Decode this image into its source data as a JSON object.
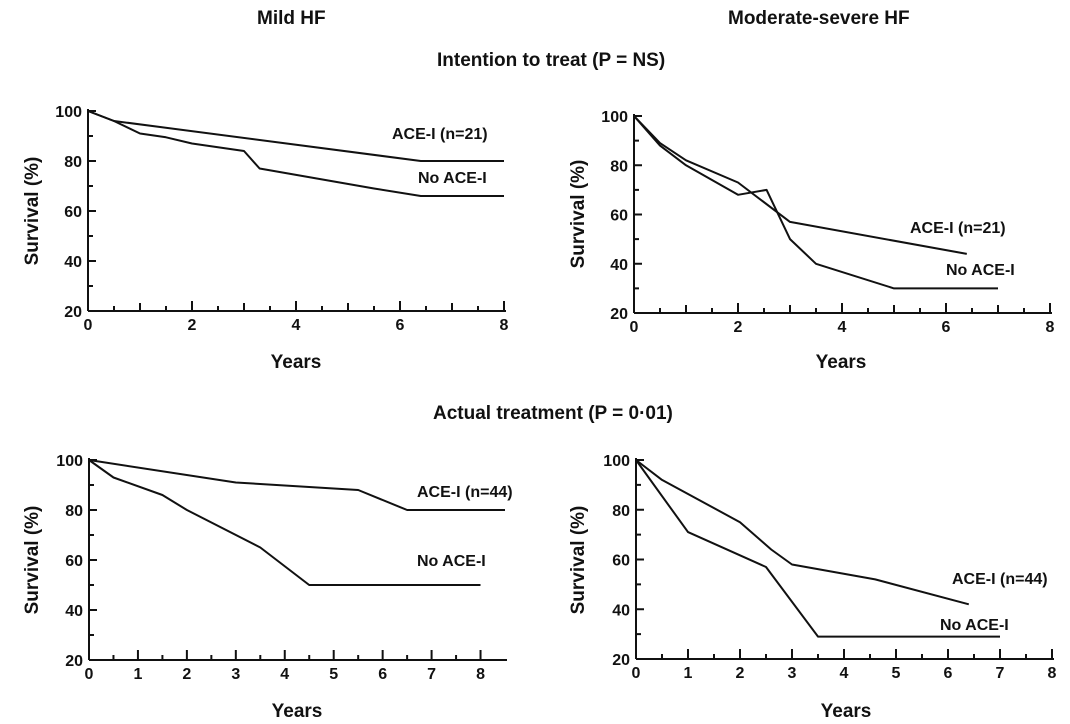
{
  "headers": {
    "left_column": "Mild HF",
    "right_column": "Moderate-severe HF",
    "section_top": "Intention to treat (P = NS)",
    "section_bottom": "Actual treatment (P = 0·01)"
  },
  "chart_data": [
    {
      "type": "line",
      "panel": "intention-mild",
      "xlabel": "Years",
      "ylabel": "Survival (%)",
      "xlim": [
        0,
        8
      ],
      "ylim": [
        20,
        100
      ],
      "xticks": [
        0,
        2,
        4,
        6,
        8
      ],
      "xminor": [
        1,
        3,
        5,
        7
      ],
      "yticks": [
        20,
        40,
        60,
        80,
        100
      ],
      "series": [
        {
          "name": "ACE-I  (n=21)",
          "x": [
            0,
            0.5,
            6.4,
            8
          ],
          "y": [
            100,
            96,
            80,
            80
          ]
        },
        {
          "name": "No ACE-I",
          "x": [
            0,
            0.5,
            1,
            1.5,
            2,
            3,
            3.3,
            5.5,
            6.4,
            8
          ],
          "y": [
            100,
            96,
            91,
            89.5,
            87,
            84,
            77,
            69,
            66,
            66
          ]
        }
      ]
    },
    {
      "type": "line",
      "panel": "intention-moderate",
      "xlabel": "Years",
      "ylabel": "Survival (%)",
      "xlim": [
        0,
        8
      ],
      "ylim": [
        20,
        100
      ],
      "xticks": [
        0,
        2,
        4,
        6,
        8
      ],
      "xminor": [
        1,
        3,
        5,
        7
      ],
      "yticks": [
        20,
        40,
        60,
        80,
        100
      ],
      "series": [
        {
          "name": "ACE-I (n=21)",
          "x": [
            0,
            0.5,
            1,
            2,
            3,
            6.4
          ],
          "y": [
            100,
            89,
            82,
            73,
            57,
            44
          ]
        },
        {
          "name": "No ACE-I",
          "x": [
            0,
            0.5,
            1,
            2,
            2.55,
            3,
            3.5,
            5,
            7
          ],
          "y": [
            100,
            88,
            80,
            68,
            70,
            50,
            40,
            30,
            30
          ]
        }
      ]
    },
    {
      "type": "line",
      "panel": "actual-mild",
      "xlabel": "Years",
      "ylabel": "Survival (%)",
      "xlim": [
        0,
        8.5
      ],
      "ylim": [
        20,
        100
      ],
      "xticks": [
        0,
        1,
        2,
        3,
        4,
        5,
        6,
        7,
        8
      ],
      "xminor": [],
      "yticks": [
        20,
        40,
        60,
        80,
        100
      ],
      "series": [
        {
          "name": "ACE-I (n=44)",
          "x": [
            0,
            3,
            5.5,
            6.5,
            8.5
          ],
          "y": [
            100,
            91,
            88,
            80,
            80
          ]
        },
        {
          "name": "No ACE-I",
          "x": [
            0,
            0.5,
            1.5,
            2,
            3.5,
            4.5,
            8
          ],
          "y": [
            100,
            93,
            86,
            80,
            65,
            50,
            50
          ]
        }
      ]
    },
    {
      "type": "line",
      "panel": "actual-moderate",
      "xlabel": "Years",
      "ylabel": "Survival (%)",
      "xlim": [
        0,
        8
      ],
      "ylim": [
        20,
        100
      ],
      "xticks": [
        0,
        1,
        2,
        3,
        4,
        5,
        6,
        7,
        8
      ],
      "xminor": [],
      "yticks": [
        20,
        40,
        60,
        80,
        100
      ],
      "series": [
        {
          "name": "ACE-I (n=44)",
          "x": [
            0,
            0.5,
            2,
            2.6,
            3,
            4.6,
            6.4
          ],
          "y": [
            100,
            92,
            75,
            64,
            58,
            52,
            42
          ]
        },
        {
          "name": "No ACE-I",
          "x": [
            0,
            1,
            2.5,
            3.5,
            7
          ],
          "y": [
            100,
            71,
            57,
            29,
            29
          ]
        }
      ]
    }
  ]
}
